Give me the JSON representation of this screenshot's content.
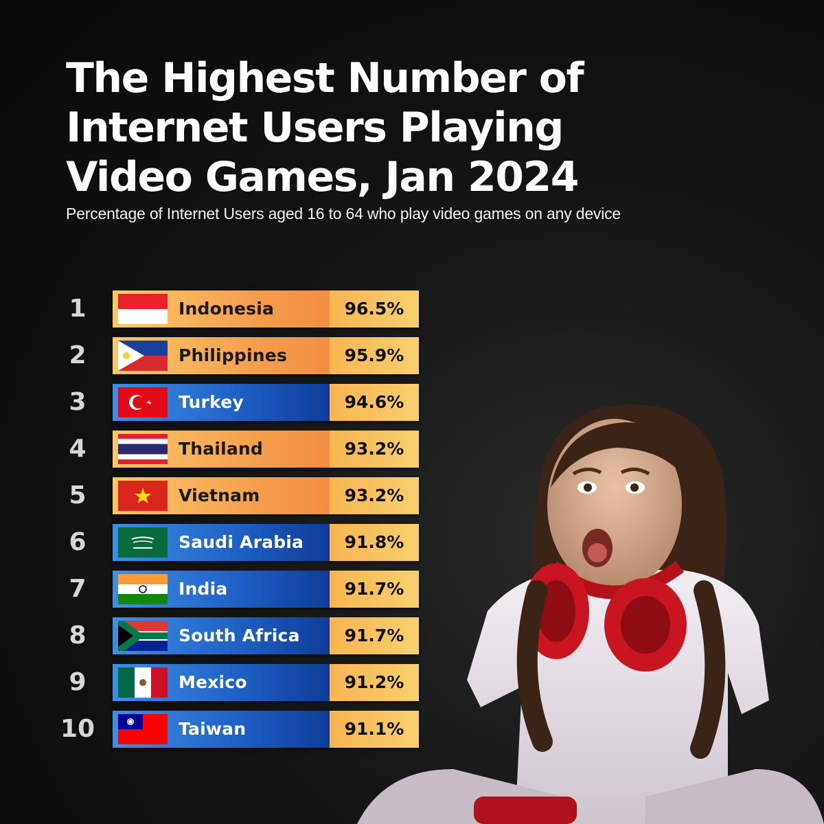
{
  "header": {
    "title": "The Highest Number of Internet Users Playing Video Games, Jan 2024",
    "subtitle": "Percentage of Internet Users aged 16 to 64 who play video games on any device"
  },
  "chart_data": {
    "type": "bar",
    "title": "The Highest Number of Internet Users Playing Video Games, Jan 2024",
    "subtitle": "Percentage of Internet Users aged 16 to 64 who play video games on any device",
    "unit": "%",
    "ranks": [
      "1",
      "2",
      "3",
      "4",
      "5",
      "6",
      "7",
      "8",
      "9",
      "10"
    ],
    "categories": [
      "Indonesia",
      "Philippines",
      "Turkey",
      "Thailand",
      "Vietnam",
      "Saudi Arabia",
      "India",
      "South Africa",
      "Mexico",
      "Taiwan"
    ],
    "values": [
      96.5,
      95.9,
      94.6,
      93.2,
      93.2,
      91.8,
      91.7,
      91.7,
      91.2,
      91.1
    ],
    "value_labels": [
      "96.5%",
      "95.9%",
      "94.6%",
      "93.2%",
      "93.2%",
      "91.8%",
      "91.7%",
      "91.7%",
      "91.2%",
      "91.1%"
    ],
    "row_styles": [
      "orange",
      "orange",
      "blue",
      "orange",
      "orange",
      "blue",
      "blue",
      "blue",
      "blue",
      "blue"
    ],
    "flag_icons": [
      "indonesia-flag-icon",
      "philippines-flag-icon",
      "turkey-flag-icon",
      "thailand-flag-icon",
      "vietnam-flag-icon",
      "saudi-arabia-flag-icon",
      "india-flag-icon",
      "south-africa-flag-icon",
      "mexico-flag-icon",
      "taiwan-flag-icon"
    ]
  },
  "colors": {
    "background": "#0b0b0b",
    "orange_bar": "#f59c4b",
    "blue_bar": "#1e5ec4",
    "value_cell": "#f8c560"
  }
}
